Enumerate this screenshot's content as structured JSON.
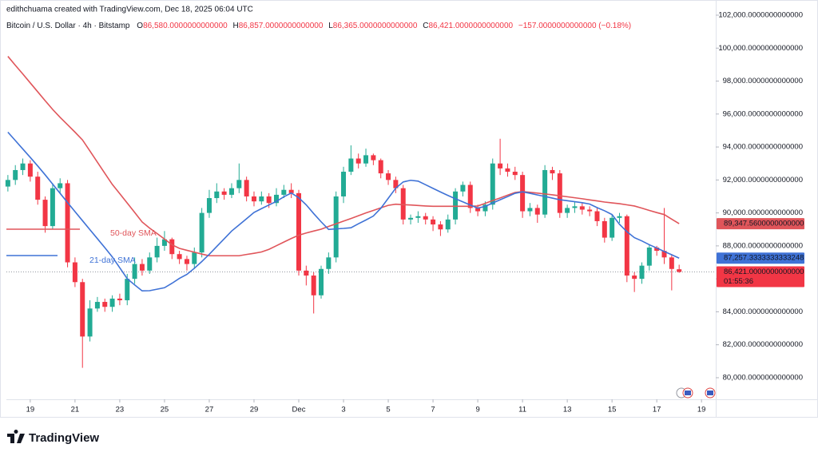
{
  "header": {
    "credit": "edithchuama created with TradingView.com, Dec 18, 2025 06:04 UTC",
    "symbol": "Bitcoin / U.S. Dollar · 4h · Bitstamp",
    "ohlc": [
      {
        "key": "O",
        "value": "86,580.0000000000000"
      },
      {
        "key": "H",
        "value": "86,857.0000000000000"
      },
      {
        "key": "L",
        "value": "86,365.0000000000000"
      },
      {
        "key": "C",
        "value": "86,421.0000000000000"
      }
    ],
    "change": "−157.0000000000000 (−0.18%)"
  },
  "footer": {
    "logo": "TradingView"
  },
  "chart_data": {
    "type": "candlestick",
    "up_color": "#22ab94",
    "down_color": "#f23645",
    "grid": false,
    "open": [
      91600,
      92000,
      92600,
      93000,
      92200,
      90800,
      89200,
      91500,
      91800,
      87000,
      85800,
      82500,
      84200,
      84600,
      84300,
      84800,
      84700,
      86000,
      86900,
      86500,
      87300,
      88000,
      88400,
      87500,
      87200,
      86900,
      87600,
      90000,
      90900,
      91300,
      91100,
      91500,
      92000,
      91000,
      90700,
      91000,
      90600,
      91100,
      91400,
      91200,
      86500,
      86200,
      85000,
      86600,
      87300,
      91000,
      92500,
      93300,
      93000,
      93500,
      93200,
      92400,
      92000,
      91500,
      89600,
      89700,
      89800,
      89600,
      89300,
      89000,
      89600,
      91300,
      91700,
      90300,
      90100,
      90500,
      93000,
      92700,
      92500,
      92300,
      90100,
      90300,
      89900,
      92600,
      92400,
      90000,
      90300,
      90400,
      90200,
      90100,
      89500,
      88500,
      89700,
      89800,
      86200,
      86000,
      86800,
      87900,
      87700,
      87300,
      86580
    ],
    "high": [
      92300,
      92900,
      93300,
      93200,
      92500,
      91000,
      91800,
      92100,
      92000,
      87300,
      86000,
      84700,
      84900,
      84800,
      85000,
      85100,
      86300,
      87300,
      87200,
      87600,
      88500,
      88900,
      88500,
      87700,
      87400,
      87900,
      90300,
      91400,
      91800,
      91500,
      91800,
      93000,
      92200,
      91300,
      91300,
      91200,
      91500,
      91700,
      91800,
      91400,
      86800,
      86400,
      86800,
      87600,
      91300,
      92800,
      94100,
      93600,
      93900,
      93600,
      93300,
      92600,
      92200,
      91700,
      89900,
      90100,
      90000,
      89800,
      89500,
      89900,
      91500,
      91900,
      91900,
      90500,
      90700,
      93300,
      94500,
      93000,
      92800,
      92500,
      90600,
      90500,
      92900,
      92800,
      92600,
      90500,
      90700,
      90600,
      90400,
      90300,
      89700,
      89900,
      90000,
      89900,
      86400,
      87000,
      88100,
      88000,
      90300,
      87500,
      86857
    ],
    "low": [
      91300,
      91700,
      92300,
      91900,
      90500,
      88800,
      89000,
      91200,
      86700,
      85500,
      80600,
      82200,
      84000,
      84000,
      84000,
      84400,
      84400,
      85700,
      86200,
      86300,
      87000,
      87700,
      87200,
      86900,
      86500,
      86600,
      87300,
      89700,
      90600,
      90800,
      90900,
      91200,
      90700,
      90400,
      90500,
      90300,
      90400,
      90900,
      90900,
      86200,
      85600,
      83900,
      84800,
      86300,
      87000,
      90600,
      92300,
      92700,
      92800,
      92900,
      92100,
      91700,
      91200,
      89300,
      89300,
      89400,
      89300,
      88900,
      88600,
      88800,
      89300,
      91000,
      90000,
      89800,
      89800,
      90200,
      92300,
      92200,
      92000,
      89700,
      89800,
      89400,
      89700,
      92000,
      89700,
      89700,
      90000,
      89900,
      89800,
      89200,
      88200,
      88300,
      89400,
      85800,
      85200,
      85700,
      86500,
      87400,
      86900,
      85300,
      86365
    ],
    "close": [
      92000,
      92600,
      93000,
      92200,
      90800,
      89200,
      91500,
      91800,
      87000,
      85800,
      82500,
      84200,
      84600,
      84300,
      84800,
      84700,
      86000,
      86900,
      86500,
      87300,
      88000,
      88400,
      87500,
      87200,
      86900,
      87600,
      90000,
      90900,
      91300,
      91100,
      91500,
      92000,
      91000,
      90700,
      91000,
      90600,
      91100,
      91400,
      91200,
      86500,
      86200,
      85000,
      86600,
      87300,
      91000,
      92500,
      93300,
      93000,
      93500,
      93200,
      92400,
      92000,
      91500,
      89600,
      89700,
      89800,
      89600,
      89300,
      89000,
      89600,
      91300,
      91700,
      90300,
      90100,
      90500,
      93000,
      92700,
      92500,
      92300,
      90100,
      90300,
      89900,
      92600,
      92400,
      90000,
      90300,
      90400,
      90200,
      90100,
      89500,
      88500,
      89700,
      89800,
      86200,
      86000,
      86800,
      87900,
      87700,
      87300,
      86600,
      86421
    ],
    "series": [
      {
        "name": "50-day SMA",
        "color": "#e0555a",
        "values": [
          99500,
          98960,
          98430,
          97890,
          97350,
          96810,
          96280,
          95800,
          95350,
          94900,
          94430,
          93760,
          93080,
          92400,
          91730,
          91170,
          90600,
          90030,
          89450,
          89080,
          88750,
          88410,
          88070,
          87850,
          87730,
          87620,
          87500,
          87400,
          87400,
          87400,
          87400,
          87400,
          87480,
          87550,
          87630,
          87790,
          88010,
          88230,
          88450,
          88650,
          88780,
          88900,
          89010,
          89180,
          89340,
          89500,
          89660,
          89830,
          90000,
          90150,
          90310,
          90460,
          90530,
          90500,
          90480,
          90450,
          90420,
          90400,
          90400,
          90400,
          90400,
          90400,
          90400,
          90420,
          90580,
          90750,
          90910,
          91080,
          91240,
          91290,
          91250,
          91200,
          91150,
          91100,
          91040,
          90980,
          90920,
          90860,
          90790,
          90730,
          90660,
          90610,
          90560,
          90490,
          90420,
          90290,
          90150,
          90020,
          89900,
          89620,
          89347.56
        ]
      },
      {
        "name": "21-day SMA",
        "color": "#3f72d6",
        "values": [
          94900,
          94390,
          93880,
          93370,
          92850,
          92310,
          91750,
          91190,
          90630,
          90080,
          89530,
          88980,
          88440,
          87890,
          87330,
          86670,
          86010,
          85630,
          85270,
          85280,
          85370,
          85460,
          85730,
          86030,
          86270,
          86640,
          87050,
          87490,
          87960,
          88430,
          88900,
          89270,
          89650,
          90030,
          90260,
          90480,
          90700,
          90980,
          91210,
          90920,
          90490,
          89960,
          89460,
          89000,
          89030,
          89060,
          89100,
          89340,
          89570,
          89810,
          90280,
          90890,
          91500,
          91880,
          91980,
          91930,
          91710,
          91490,
          91270,
          91060,
          90860,
          90670,
          90480,
          90290,
          90400,
          90600,
          90800,
          90990,
          91190,
          91280,
          91190,
          91090,
          91000,
          90900,
          90800,
          90740,
          90680,
          90620,
          90540,
          90320,
          90130,
          89900,
          89310,
          88860,
          88500,
          88300,
          88070,
          87870,
          87660,
          87460,
          87257.33
        ]
      }
    ],
    "price_tags": [
      {
        "value": 89347.56,
        "label": "89,347.5600000000000",
        "color": "#e0555a"
      },
      {
        "value": 87257.33333333333,
        "label": "87,257.3333333333248",
        "color": "#3f72d6"
      },
      {
        "value": 86421,
        "label": "86,421.0000000000000",
        "countdown": "01:55:36",
        "color": "#f23645"
      }
    ],
    "xlim": [
      -0.2,
      94.8
    ],
    "xticks": [
      {
        "value": 3,
        "label": "19"
      },
      {
        "value": 9,
        "label": "21"
      },
      {
        "value": 15,
        "label": "23"
      },
      {
        "value": 21,
        "label": "25"
      },
      {
        "value": 27,
        "label": "27"
      },
      {
        "value": 33,
        "label": "29"
      },
      {
        "value": 39,
        "label": "Dec"
      },
      {
        "value": 45,
        "label": "3"
      },
      {
        "value": 51,
        "label": "5"
      },
      {
        "value": 57,
        "label": "7"
      },
      {
        "value": 63,
        "label": "9"
      },
      {
        "value": 69,
        "label": "11"
      },
      {
        "value": 75,
        "label": "13"
      },
      {
        "value": 81,
        "label": "15"
      },
      {
        "value": 87,
        "label": "17"
      },
      {
        "value": 93,
        "label": "19"
      }
    ],
    "ylim": [
      78690,
      102920
    ],
    "yticks": [
      {
        "value": 80000,
        "label": "80,000.0000000000000"
      },
      {
        "value": 82000,
        "label": "82,000.0000000000000"
      },
      {
        "value": 84000,
        "label": "84,000.0000000000000"
      },
      {
        "value": 86000,
        "label": "86,000.0000000000000"
      },
      {
        "value": 88000,
        "label": "88,000.0000000000000"
      },
      {
        "value": 90000,
        "label": "90,000.0000000000000"
      },
      {
        "value": 92000,
        "label": "92,000.0000000000000"
      },
      {
        "value": 94000,
        "label": "94,000.0000000000000"
      },
      {
        "value": 96000,
        "label": "96,000.0000000000000"
      },
      {
        "value": 98000,
        "label": "98,000.0000000000000"
      },
      {
        "value": 100000,
        "label": "100,000.0000000000000"
      },
      {
        "value": 102000,
        "label": "102,000.0000000000000"
      }
    ]
  }
}
